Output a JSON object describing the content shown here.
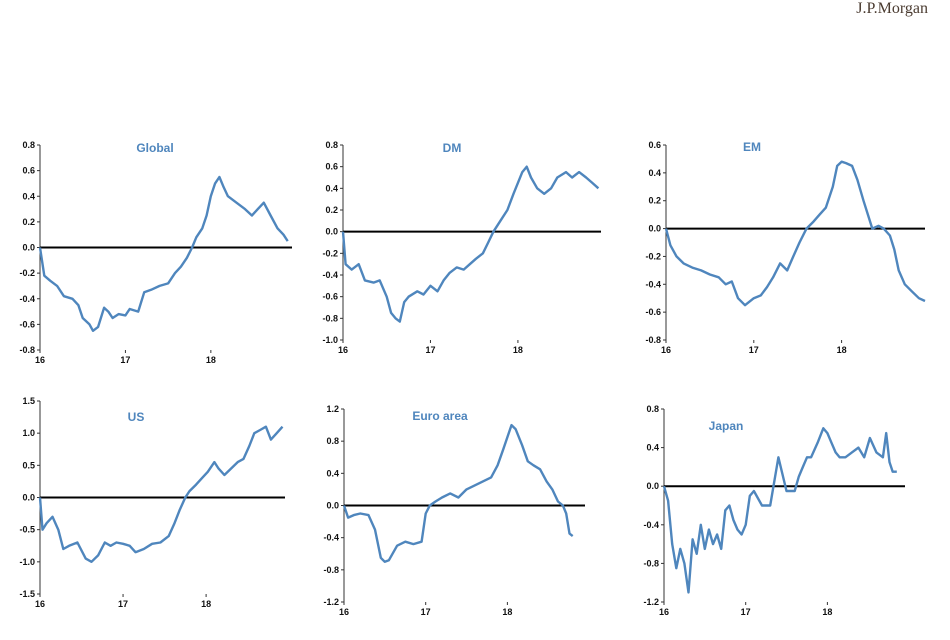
{
  "brand": "J.P.Morgan",
  "line_color": "#4f86bd",
  "chart_data": [
    {
      "type": "line",
      "title": "Global",
      "ylim": [
        -0.8,
        0.8
      ],
      "yticks": [
        "0.8",
        "0.6",
        "0.4",
        "0.2",
        "0.0",
        "-0.2",
        "-0.4",
        "-0.6",
        "-0.8"
      ],
      "xticks": [
        "16",
        "17",
        "18"
      ],
      "xlim": [
        2016,
        2018.95
      ],
      "series": [
        {
          "x": [
            2016.0,
            2016.05,
            2016.12,
            2016.2,
            2016.28,
            2016.38,
            2016.45,
            2016.5,
            2016.58,
            2016.62,
            2016.68,
            2016.75,
            2016.8,
            2016.85,
            2016.92,
            2017.0,
            2017.05,
            2017.15,
            2017.22,
            2017.3,
            2017.4,
            2017.5,
            2017.58,
            2017.65,
            2017.72,
            2017.78,
            2017.83,
            2017.9,
            2017.95,
            2018.0,
            2018.05,
            2018.1,
            2018.15,
            2018.2,
            2018.3,
            2018.4,
            2018.48,
            2018.55,
            2018.62,
            2018.7,
            2018.78,
            2018.85,
            2018.9
          ],
          "y": [
            0.0,
            -0.22,
            -0.26,
            -0.3,
            -0.38,
            -0.4,
            -0.45,
            -0.55,
            -0.6,
            -0.65,
            -0.62,
            -0.47,
            -0.5,
            -0.55,
            -0.52,
            -0.53,
            -0.48,
            -0.5,
            -0.35,
            -0.33,
            -0.3,
            -0.28,
            -0.2,
            -0.15,
            -0.08,
            0.0,
            0.08,
            0.15,
            0.25,
            0.4,
            0.5,
            0.55,
            0.47,
            0.4,
            0.35,
            0.3,
            0.25,
            0.3,
            0.35,
            0.25,
            0.15,
            0.1,
            0.05
          ]
        }
      ]
    },
    {
      "type": "line",
      "title": "DM",
      "ylim": [
        -1.0,
        0.8
      ],
      "yticks": [
        "0.8",
        "0.6",
        "0.4",
        "0.2",
        "0.0",
        "-0.2",
        "-0.4",
        "-0.6",
        "-0.8",
        "-1.0"
      ],
      "xticks": [
        "16",
        "17",
        "18"
      ],
      "xlim": [
        2016,
        2018.95
      ],
      "series": [
        {
          "x": [
            2016.0,
            2016.03,
            2016.1,
            2016.18,
            2016.25,
            2016.35,
            2016.42,
            2016.5,
            2016.55,
            2016.6,
            2016.65,
            2016.7,
            2016.75,
            2016.85,
            2016.92,
            2017.0,
            2017.08,
            2017.15,
            2017.22,
            2017.3,
            2017.38,
            2017.45,
            2017.52,
            2017.6,
            2017.66,
            2017.72,
            2017.8,
            2017.88,
            2017.95,
            2018.0,
            2018.05,
            2018.1,
            2018.15,
            2018.22,
            2018.3,
            2018.38,
            2018.45,
            2018.55,
            2018.62,
            2018.7,
            2018.78,
            2018.85,
            2018.92
          ],
          "y": [
            0.0,
            -0.3,
            -0.35,
            -0.3,
            -0.45,
            -0.47,
            -0.45,
            -0.6,
            -0.75,
            -0.8,
            -0.83,
            -0.65,
            -0.6,
            -0.55,
            -0.58,
            -0.5,
            -0.55,
            -0.45,
            -0.38,
            -0.33,
            -0.35,
            -0.3,
            -0.25,
            -0.2,
            -0.1,
            0.0,
            0.1,
            0.2,
            0.35,
            0.45,
            0.55,
            0.6,
            0.5,
            0.4,
            0.35,
            0.4,
            0.5,
            0.55,
            0.5,
            0.55,
            0.5,
            0.45,
            0.4
          ]
        }
      ]
    },
    {
      "type": "line",
      "title": "EM",
      "ylim": [
        -0.8,
        0.6
      ],
      "yticks": [
        "0.6",
        "0.4",
        "0.2",
        "0.0",
        "-0.2",
        "-0.4",
        "-0.6",
        "-0.8"
      ],
      "xticks": [
        "16",
        "17",
        "18"
      ],
      "xlim": [
        2016,
        2018.95
      ],
      "series": [
        {
          "x": [
            2016.0,
            2016.05,
            2016.12,
            2016.2,
            2016.3,
            2016.4,
            2016.5,
            2016.6,
            2016.68,
            2016.75,
            2016.82,
            2016.9,
            2017.0,
            2017.08,
            2017.15,
            2017.22,
            2017.3,
            2017.38,
            2017.45,
            2017.52,
            2017.6,
            2017.68,
            2017.75,
            2017.82,
            2017.9,
            2017.95,
            2018.0,
            2018.05,
            2018.12,
            2018.18,
            2018.25,
            2018.3,
            2018.35,
            2018.42,
            2018.48,
            2018.55,
            2018.6,
            2018.65,
            2018.72,
            2018.8,
            2018.88,
            2018.95
          ],
          "y": [
            0.0,
            -0.12,
            -0.2,
            -0.25,
            -0.28,
            -0.3,
            -0.33,
            -0.35,
            -0.4,
            -0.38,
            -0.5,
            -0.55,
            -0.5,
            -0.48,
            -0.42,
            -0.35,
            -0.25,
            -0.3,
            -0.2,
            -0.1,
            0.0,
            0.05,
            0.1,
            0.15,
            0.3,
            0.45,
            0.48,
            0.47,
            0.45,
            0.35,
            0.2,
            0.1,
            0.0,
            0.02,
            0.0,
            -0.05,
            -0.15,
            -0.3,
            -0.4,
            -0.45,
            -0.5,
            -0.52
          ]
        }
      ]
    },
    {
      "type": "line",
      "title": "US",
      "ylim": [
        -1.5,
        1.5
      ],
      "yticks": [
        "1.5",
        "1.0",
        "0.5",
        "0.0",
        "-0.5",
        "-1.0",
        "-1.5"
      ],
      "xticks": [
        "16",
        "17",
        "18"
      ],
      "xlim": [
        2016,
        2018.95
      ],
      "series": [
        {
          "x": [
            2016.0,
            2016.03,
            2016.08,
            2016.15,
            2016.22,
            2016.28,
            2016.35,
            2016.45,
            2016.55,
            2016.62,
            2016.7,
            2016.78,
            2016.85,
            2016.92,
            2017.0,
            2017.08,
            2017.15,
            2017.25,
            2017.35,
            2017.45,
            2017.55,
            2017.62,
            2017.68,
            2017.75,
            2017.8,
            2017.88,
            2017.95,
            2018.02,
            2018.1,
            2018.15,
            2018.22,
            2018.3,
            2018.38,
            2018.45,
            2018.52,
            2018.58,
            2018.65,
            2018.72,
            2018.78,
            2018.85,
            2018.92
          ],
          "y": [
            0.0,
            -0.5,
            -0.4,
            -0.3,
            -0.5,
            -0.8,
            -0.75,
            -0.7,
            -0.95,
            -1.0,
            -0.9,
            -0.7,
            -0.75,
            -0.7,
            -0.72,
            -0.75,
            -0.85,
            -0.8,
            -0.72,
            -0.7,
            -0.6,
            -0.4,
            -0.2,
            0.0,
            0.1,
            0.2,
            0.3,
            0.4,
            0.55,
            0.45,
            0.35,
            0.45,
            0.55,
            0.6,
            0.8,
            1.0,
            1.05,
            1.1,
            0.9,
            1.0,
            1.1
          ]
        }
      ]
    },
    {
      "type": "line",
      "title": "Euro area",
      "ylim": [
        -1.2,
        1.2
      ],
      "yticks": [
        "1.2",
        "0.8",
        "0.4",
        "0.0",
        "-0.4",
        "-0.8",
        "-1.2"
      ],
      "xticks": [
        "16",
        "17",
        "18"
      ],
      "xlim": [
        2016,
        2018.95
      ],
      "series": [
        {
          "x": [
            2016.0,
            2016.05,
            2016.12,
            2016.2,
            2016.3,
            2016.38,
            2016.45,
            2016.5,
            2016.55,
            2016.65,
            2016.75,
            2016.85,
            2016.95,
            2017.0,
            2017.05,
            2017.12,
            2017.2,
            2017.3,
            2017.4,
            2017.5,
            2017.6,
            2017.7,
            2017.8,
            2017.88,
            2017.95,
            2018.0,
            2018.05,
            2018.1,
            2018.18,
            2018.25,
            2018.32,
            2018.4,
            2018.48,
            2018.55,
            2018.62,
            2018.68,
            2018.72,
            2018.76,
            2018.8
          ],
          "y": [
            0.0,
            -0.15,
            -0.12,
            -0.1,
            -0.12,
            -0.3,
            -0.65,
            -0.7,
            -0.68,
            -0.5,
            -0.45,
            -0.48,
            -0.45,
            -0.1,
            0.0,
            0.05,
            0.1,
            0.15,
            0.1,
            0.2,
            0.25,
            0.3,
            0.35,
            0.5,
            0.7,
            0.85,
            1.0,
            0.95,
            0.75,
            0.55,
            0.5,
            0.45,
            0.3,
            0.2,
            0.05,
            0.0,
            -0.1,
            -0.35,
            -0.38
          ]
        }
      ]
    },
    {
      "type": "line",
      "title": "Japan",
      "ylim": [
        -1.2,
        0.8
      ],
      "yticks": [
        "0.8",
        "0.4",
        "0.0",
        "-0.4",
        "-0.8",
        "-1.2"
      ],
      "xticks": [
        "16",
        "17",
        "18"
      ],
      "xlim": [
        2016,
        2018.95
      ],
      "series": [
        {
          "x": [
            2016.0,
            2016.05,
            2016.1,
            2016.15,
            2016.2,
            2016.25,
            2016.3,
            2016.35,
            2016.4,
            2016.45,
            2016.5,
            2016.55,
            2016.6,
            2016.65,
            2016.7,
            2016.75,
            2016.8,
            2016.85,
            2016.9,
            2016.95,
            2017.0,
            2017.05,
            2017.1,
            2017.2,
            2017.3,
            2017.4,
            2017.5,
            2017.6,
            2017.65,
            2017.7,
            2017.75,
            2017.8,
            2017.88,
            2017.95,
            2018.0,
            2018.05,
            2018.1,
            2018.15,
            2018.22,
            2018.3,
            2018.38,
            2018.45,
            2018.52,
            2018.6,
            2018.68,
            2018.72,
            2018.76,
            2018.8,
            2018.85
          ],
          "y": [
            0.0,
            -0.15,
            -0.6,
            -0.85,
            -0.65,
            -0.8,
            -1.1,
            -0.55,
            -0.7,
            -0.4,
            -0.65,
            -0.45,
            -0.6,
            -0.5,
            -0.65,
            -0.25,
            -0.2,
            -0.35,
            -0.45,
            -0.5,
            -0.4,
            -0.1,
            -0.05,
            -0.2,
            -0.2,
            0.3,
            -0.05,
            -0.05,
            0.1,
            0.2,
            0.3,
            0.3,
            0.45,
            0.6,
            0.55,
            0.45,
            0.35,
            0.3,
            0.3,
            0.35,
            0.4,
            0.3,
            0.5,
            0.35,
            0.3,
            0.55,
            0.25,
            0.15,
            0.15
          ]
        }
      ]
    }
  ]
}
